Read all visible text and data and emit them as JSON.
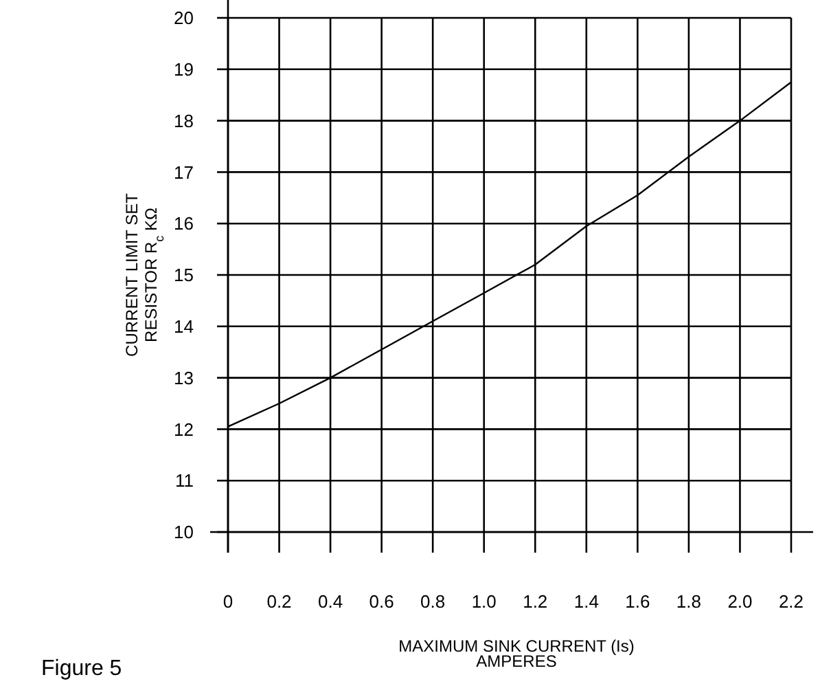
{
  "chart_data": {
    "type": "line",
    "xlabel": "MAXIMUM SINK CURRENT (Is)\nAMPERES",
    "ylabel": "CURRENT LIMIT SET\nRESISTOR R$_{c}$ KΩ",
    "annotations": [
      "Figure 5"
    ],
    "x": [
      0,
      0.2,
      0.4,
      0.6,
      0.8,
      1.0,
      1.2,
      1.4,
      1.6,
      1.8,
      2.0,
      2.2
    ],
    "series": [
      {
        "color": "#000000",
        "values": [
          12.05,
          12.5,
          13,
          13.55,
          14.1,
          14.65,
          15.2,
          15.95,
          16.55,
          17.3,
          18,
          18.75
        ]
      }
    ],
    "xlim": [
      0,
      2.2
    ],
    "xticks": [
      0,
      {
        "value": 0.2,
        "label": "0.2"
      },
      {
        "value": 0.4,
        "label": "0.4"
      },
      {
        "value": 0.6,
        "label": "0.6"
      },
      {
        "value": 0.8,
        "label": "0.8"
      },
      {
        "value": 1.0,
        "label": "1.0"
      },
      {
        "value": 1.2,
        "label": "1.2"
      },
      {
        "value": 1.4,
        "label": "1.4"
      },
      {
        "value": 1.6,
        "label": "1.6"
      },
      {
        "value": 1.8,
        "label": "1.8"
      },
      {
        "value": 2.0,
        "label": "2.0"
      },
      {
        "value": 2.2,
        "label": "2.2"
      }
    ],
    "ylim": [
      10,
      20
    ],
    "yticks": [
      10,
      11,
      12,
      13,
      14,
      15,
      16,
      17,
      18,
      19,
      20
    ],
    "grid": true,
    "marker": "none",
    "line_style": "solid"
  }
}
